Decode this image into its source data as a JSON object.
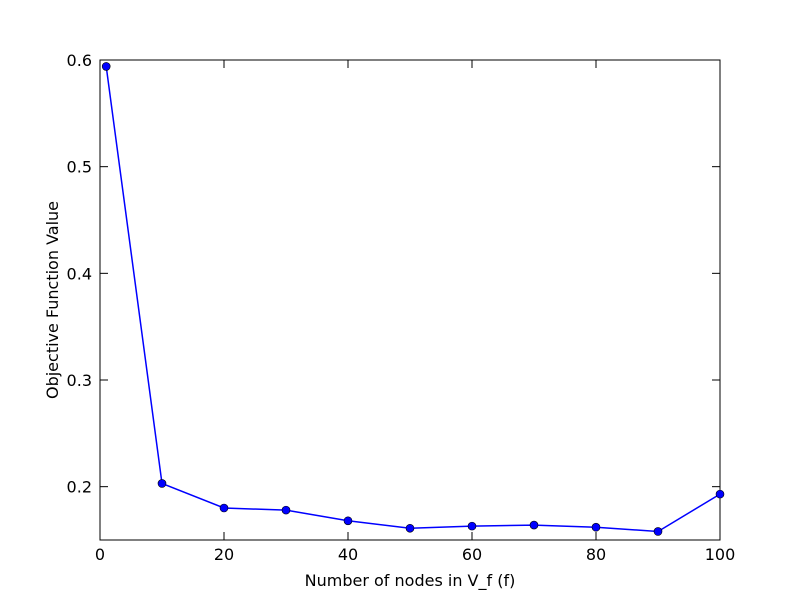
{
  "chart_data": {
    "type": "line",
    "title": "",
    "xlabel": "Number of nodes in V_f (f)",
    "ylabel": "Objective Function Value",
    "xlim": [
      0,
      100
    ],
    "ylim": [
      0.15,
      0.6
    ],
    "xticks": [
      0,
      20,
      40,
      60,
      80,
      100
    ],
    "xtick_labels": [
      "0",
      "20",
      "40",
      "60",
      "80",
      "100"
    ],
    "yticks": [
      0.2,
      0.3,
      0.4,
      0.5,
      0.6
    ],
    "ytick_labels": [
      "0.2",
      "0.3",
      "0.4",
      "0.5",
      "0.6"
    ],
    "grid": false,
    "legend": "none",
    "series": [
      {
        "color": "#0000ff",
        "marker": "circle",
        "x": [
          1,
          10,
          20,
          30,
          40,
          50,
          60,
          70,
          80,
          90,
          100
        ],
        "y": [
          0.594,
          0.203,
          0.18,
          0.178,
          0.168,
          0.161,
          0.163,
          0.164,
          0.162,
          0.158,
          0.193
        ]
      }
    ]
  }
}
